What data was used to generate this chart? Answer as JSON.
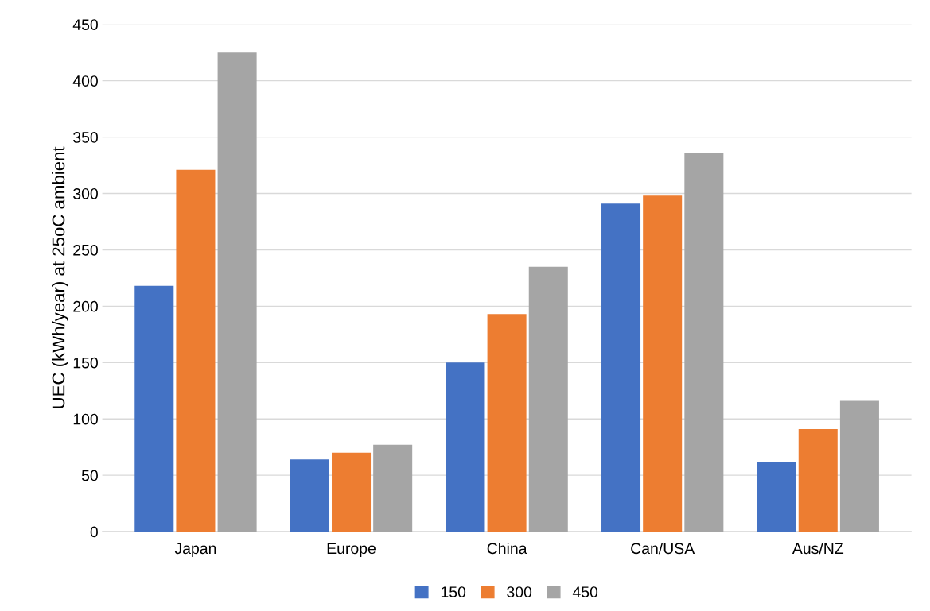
{
  "chart_data": {
    "type": "bar",
    "ylabel": "UEC (kWh/year) at 25oC ambient",
    "categories": [
      "Japan",
      "Europe",
      "China",
      "Can/USA",
      "Aus/NZ"
    ],
    "series": [
      {
        "name": "150",
        "color": "#4472c4",
        "values": [
          218,
          64,
          150,
          291,
          62
        ]
      },
      {
        "name": "300",
        "color": "#ed7d31",
        "values": [
          321,
          70,
          193,
          298,
          91
        ]
      },
      {
        "name": "450",
        "color": "#a5a5a5",
        "values": [
          425,
          77,
          235,
          336,
          116
        ]
      }
    ],
    "ylim": [
      0,
      450
    ],
    "yticks": [
      0,
      50,
      100,
      150,
      200,
      250,
      300,
      350,
      400,
      450
    ],
    "grid": "y",
    "legend": "bottom"
  }
}
